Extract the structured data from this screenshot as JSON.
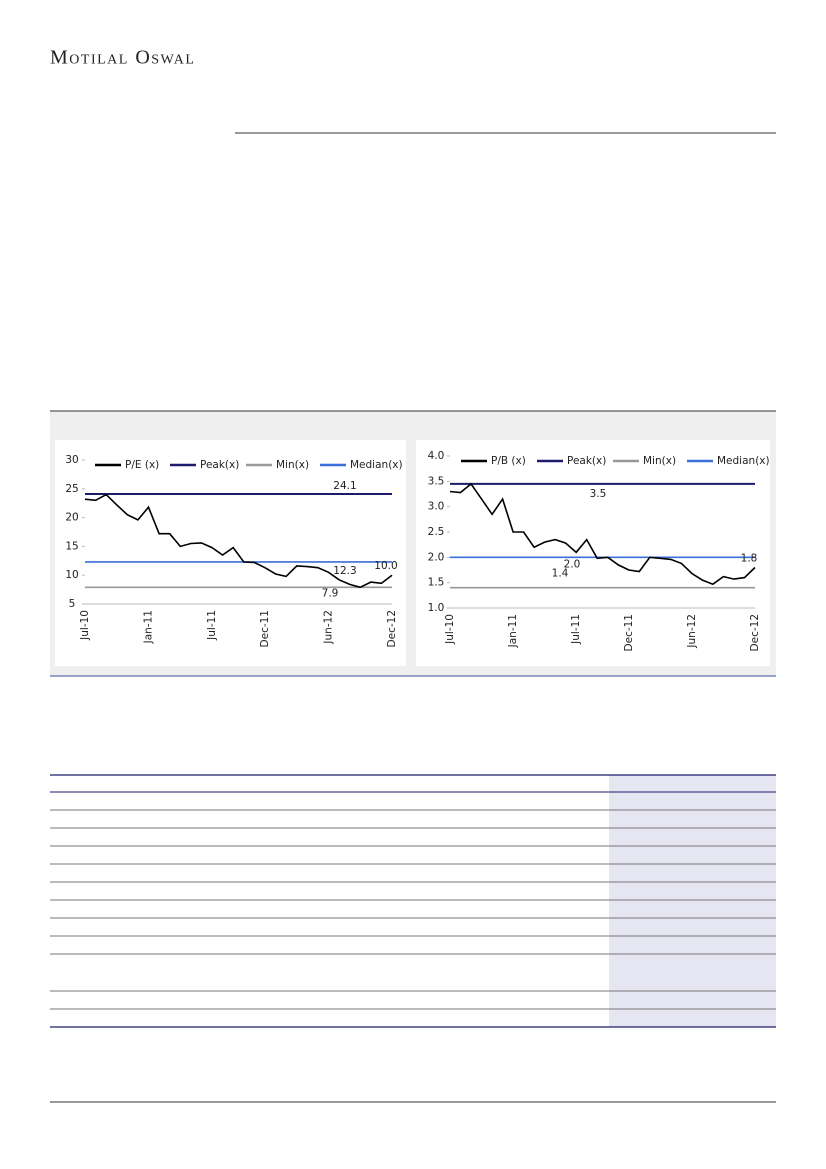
{
  "header": {
    "brand": "Motilal Oswal"
  },
  "chart_data": [
    {
      "type": "line",
      "categories": [
        "Jul-10",
        null,
        null,
        null,
        null,
        null,
        "Jan-11",
        null,
        null,
        null,
        null,
        null,
        "Jul-11",
        null,
        null,
        null,
        null,
        "Dec-11",
        null,
        null,
        null,
        null,
        null,
        "Jun-12",
        null,
        null,
        null,
        null,
        null,
        "Dec-12"
      ],
      "series": [
        {
          "name": "P/E (x)",
          "color": "#000000",
          "values": [
            23.2,
            23.0,
            24.0,
            22.2,
            20.5,
            19.6,
            21.8,
            17.2,
            17.2,
            15.0,
            15.5,
            15.6,
            14.8,
            13.5,
            14.8,
            12.3,
            12.2,
            11.3,
            10.2,
            9.8,
            11.6,
            11.5,
            11.3,
            10.5,
            9.2,
            8.4,
            7.9,
            8.8,
            8.6,
            10.0
          ],
          "value_labels": [
            null,
            null,
            null,
            null,
            null,
            null,
            null,
            null,
            null,
            null,
            null,
            null,
            null,
            null,
            null,
            null,
            null,
            null,
            null,
            null,
            null,
            null,
            null,
            null,
            null,
            null,
            null,
            null,
            null,
            "10.0"
          ]
        }
      ],
      "reference_lines": [
        {
          "name": "Peak(x)",
          "color": "#1c1c6b",
          "value": 24.1,
          "label": "24.1"
        },
        {
          "name": "Min(x)",
          "color": "#999999",
          "value": 7.9,
          "label": "7.9"
        },
        {
          "name": "Median(x)",
          "color": "#3a6fd8",
          "value": 12.3,
          "label": "12.3"
        }
      ],
      "ylim": [
        5,
        30
      ],
      "yticks": [
        5,
        10,
        15,
        20,
        25,
        30
      ]
    },
    {
      "type": "line",
      "categories": [
        "Jul-10",
        null,
        null,
        null,
        null,
        null,
        "Jan-11",
        null,
        null,
        null,
        null,
        null,
        "Jul-11",
        null,
        null,
        null,
        null,
        "Dec-11",
        null,
        null,
        null,
        null,
        null,
        "Jun-12",
        null,
        null,
        null,
        null,
        null,
        "Dec-12"
      ],
      "series": [
        {
          "name": "P/B (x)",
          "color": "#000000",
          "values": [
            3.3,
            3.28,
            3.45,
            3.15,
            2.85,
            3.15,
            2.5,
            2.5,
            2.2,
            2.3,
            2.35,
            2.28,
            2.1,
            2.35,
            1.98,
            2.0,
            1.85,
            1.75,
            1.72,
            2.0,
            1.98,
            1.96,
            1.88,
            1.68,
            1.55,
            1.47,
            1.62,
            1.57,
            1.6,
            1.8
          ],
          "value_labels": [
            null,
            null,
            null,
            null,
            null,
            null,
            null,
            null,
            null,
            null,
            null,
            null,
            null,
            null,
            null,
            null,
            null,
            null,
            null,
            null,
            null,
            null,
            null,
            null,
            null,
            null,
            null,
            null,
            null,
            "1.8"
          ]
        }
      ],
      "reference_lines": [
        {
          "name": "Peak(x)",
          "color": "#1c1c6b",
          "value": 3.45,
          "label": "3.5"
        },
        {
          "name": "Min(x)",
          "color": "#999999",
          "value": 1.4,
          "label": "1.4"
        },
        {
          "name": "Median(x)",
          "color": "#3a6fd8",
          "value": 2.0,
          "label": "2.0"
        }
      ],
      "ylim": [
        1,
        4
      ],
      "yticks": [
        {
          "value": 1,
          "label": "1.0"
        },
        {
          "value": 1.5,
          "label": "1.5"
        },
        {
          "value": 2,
          "label": "2.0"
        },
        {
          "value": 2.5,
          "label": "2.5"
        },
        {
          "value": 3,
          "label": "3.0"
        },
        {
          "value": 3.5,
          "label": "3.5"
        },
        {
          "value": 4,
          "label": "4.0"
        }
      ]
    }
  ]
}
